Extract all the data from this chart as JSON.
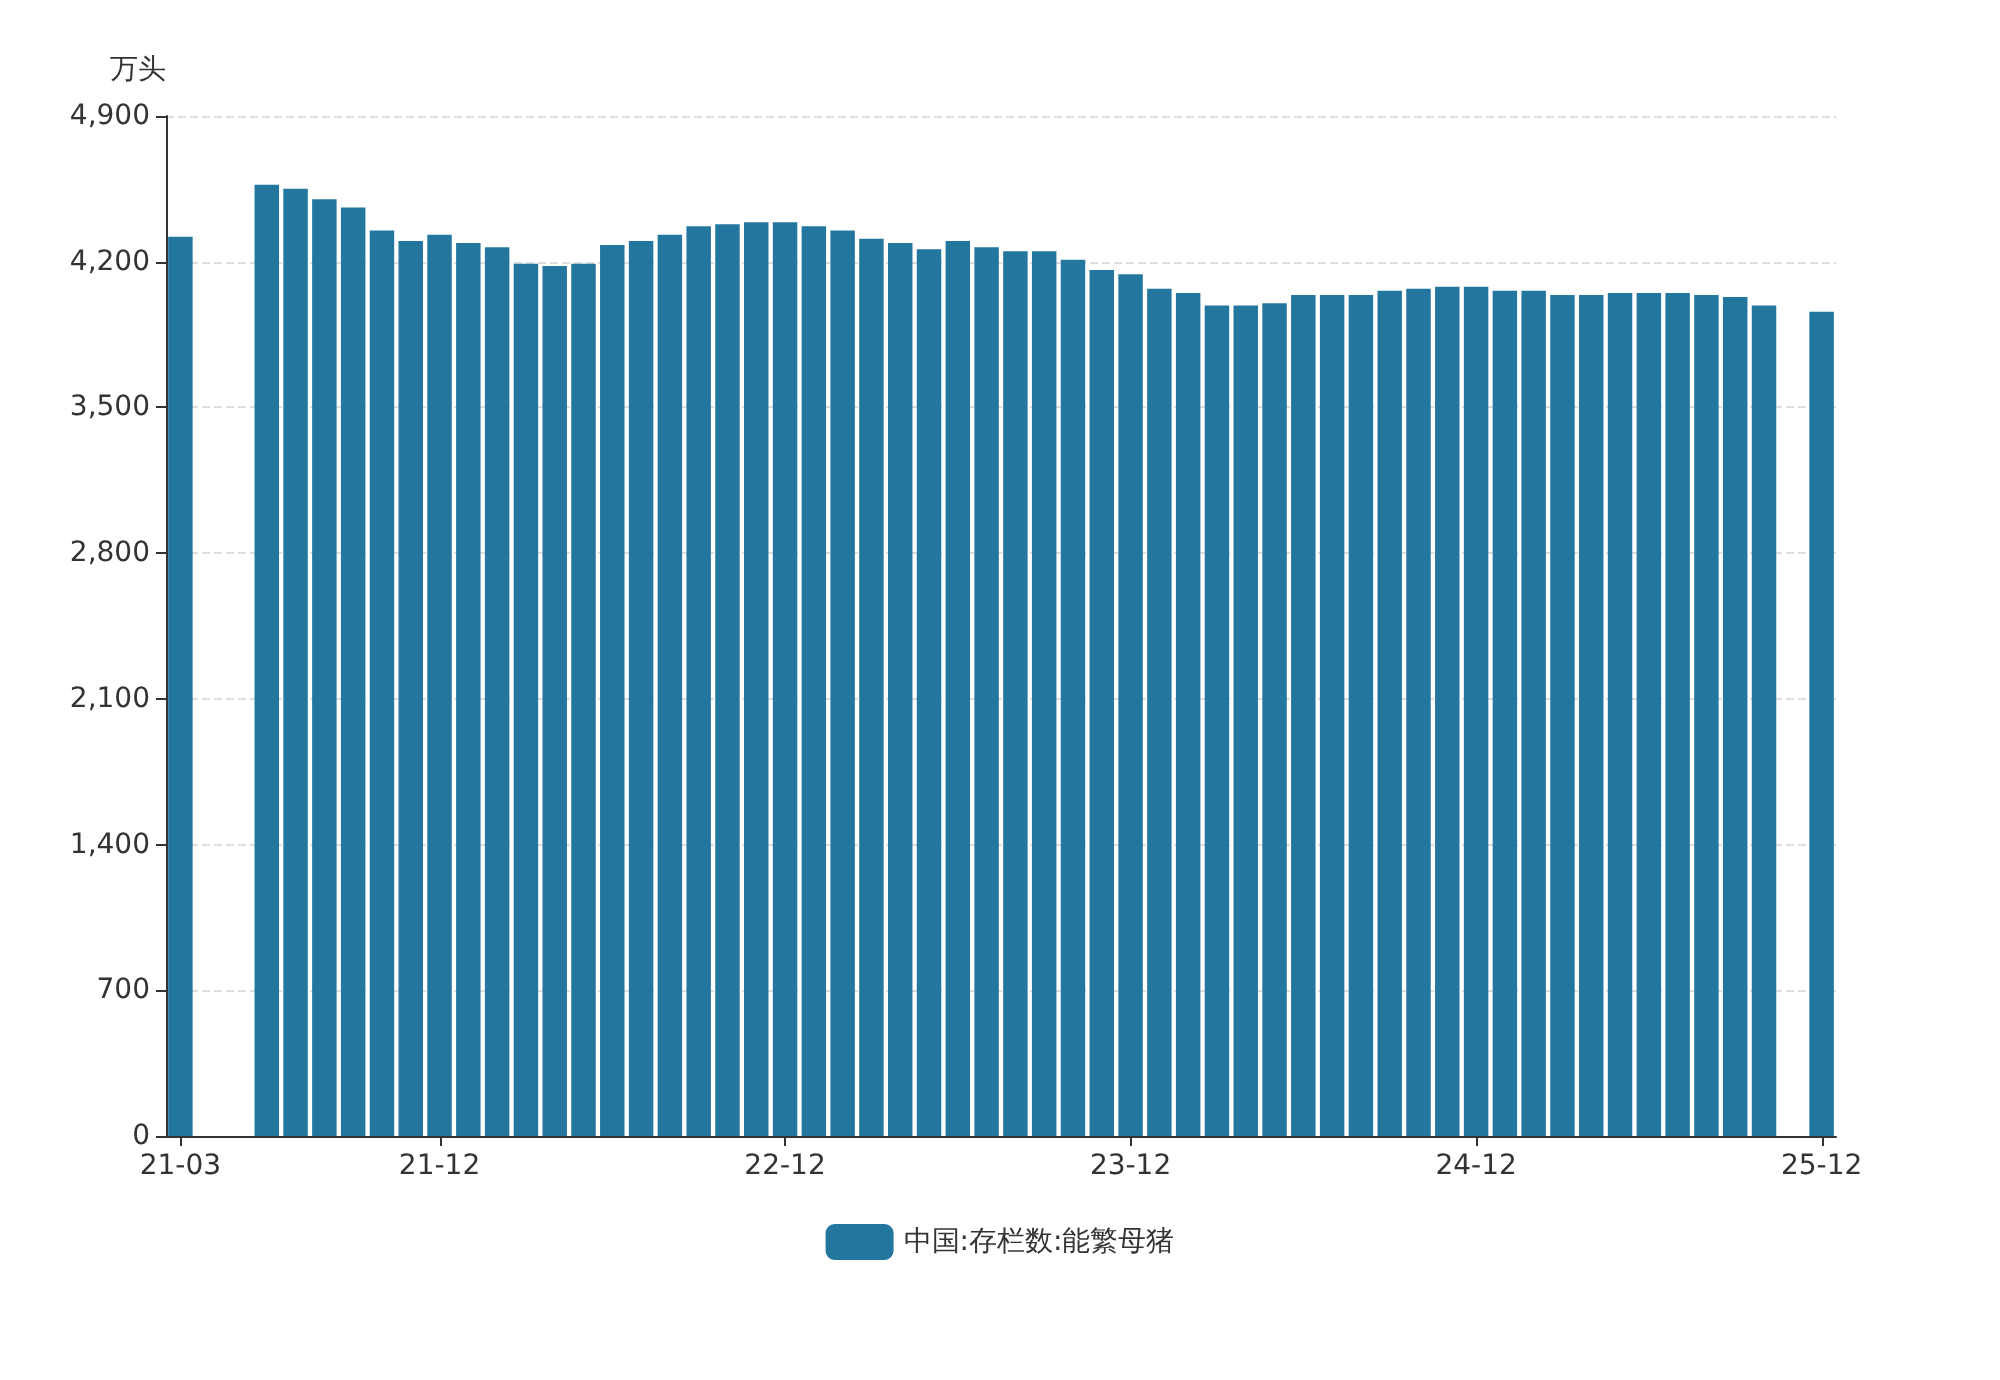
{
  "chart_data": {
    "type": "bar",
    "ylabel": "万头",
    "categories": [
      "21-03",
      null,
      null,
      null,
      null,
      null,
      null,
      null,
      null,
      "21-12",
      null,
      null,
      null,
      null,
      null,
      null,
      null,
      null,
      null,
      null,
      null,
      "22-12",
      null,
      null,
      null,
      null,
      null,
      null,
      null,
      null,
      null,
      null,
      null,
      "23-12",
      null,
      null,
      null,
      null,
      null,
      null,
      null,
      null,
      null,
      null,
      null,
      "24-12",
      null,
      null,
      null,
      null,
      null,
      null,
      null,
      null,
      null,
      null,
      null,
      "25-12"
    ],
    "series": [
      {
        "name": "中国:存栏数:能繁母猪",
        "color": "#23779f",
        "values": [
          4320,
          null,
          null,
          4570,
          4550,
          4500,
          4460,
          4350,
          4300,
          4330,
          4290,
          4270,
          4190,
          4180,
          4190,
          4280,
          4300,
          4330,
          4370,
          4380,
          4390,
          4390,
          4370,
          4350,
          4310,
          4290,
          4260,
          4300,
          4270,
          4250,
          4250,
          4210,
          4160,
          4140,
          4070,
          4050,
          3990,
          3990,
          4000,
          4040,
          4040,
          4040,
          4060,
          4070,
          4080,
          4080,
          4060,
          4060,
          4040,
          4040,
          4050,
          4050,
          4050,
          4040,
          4030,
          3990,
          null,
          3960
        ]
      }
    ],
    "ylim": [
      0,
      4900
    ],
    "yticks": [
      0,
      {
        "value": 700,
        "label": "700"
      },
      {
        "value": 1400,
        "label": "1,400"
      },
      {
        "value": 2100,
        "label": "2,100"
      },
      {
        "value": 2800,
        "label": "2,800"
      },
      {
        "value": 3500,
        "label": "3,500"
      },
      {
        "value": 4200,
        "label": "4,200"
      },
      {
        "value": 4900,
        "label": "4,900"
      }
    ],
    "grid": "y",
    "legend": "bottom"
  }
}
